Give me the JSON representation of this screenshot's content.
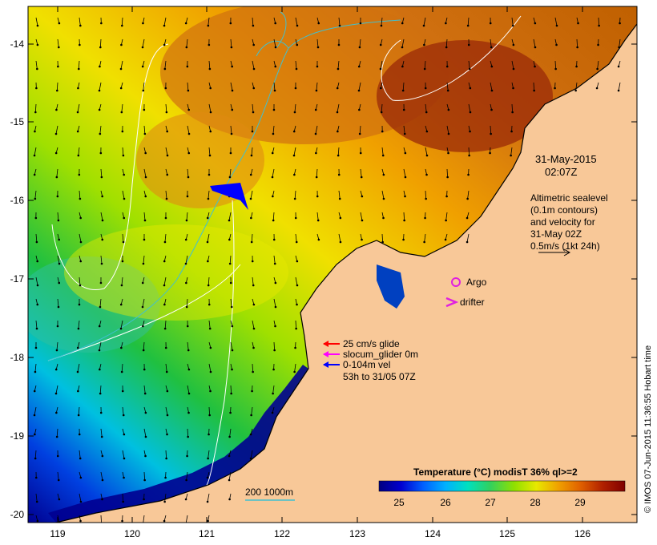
{
  "map": {
    "date_line1": "31-May-2015",
    "date_line2": "02:07Z",
    "altimetry_lines": [
      "Altimetric sealevel",
      "(0.1m contours)",
      "and velocity for",
      "31-May 02Z",
      "0.5m/s (1kt 24h)"
    ],
    "argo_label": "Argo",
    "drifter_label": "drifter",
    "legend_glide": "25 cm/s glide",
    "legend_slocum": "slocum_glider 0m",
    "legend_vel_line1": "0-104m vel",
    "legend_vel_line2": "53h to 31/05 07Z",
    "bathy_label": "200  1000m",
    "credit": "© IMOS 07-Jun-2015 11:36:55 Hobart time",
    "lat_ticks": [
      "-14",
      "-15",
      "-16",
      "-17",
      "-18",
      "-19",
      "-20"
    ],
    "lon_ticks": [
      "119",
      "120",
      "121",
      "122",
      "123",
      "124",
      "125",
      "126"
    ],
    "colorbar": {
      "title": "Temperature (°C) modisT 36% ql>=2",
      "ticks": [
        "25",
        "26",
        "27",
        "28",
        "29"
      ],
      "colors": [
        "#000080",
        "#0000d0",
        "#0060ff",
        "#00b0ff",
        "#00e0c0",
        "#30d060",
        "#90e000",
        "#e8e800",
        "#f0a000",
        "#e06000",
        "#b02000",
        "#800000"
      ]
    },
    "colors": {
      "land": "#f8c898",
      "argo": "#e020e0",
      "drifter": "#e020e0",
      "glide_arrow": "#ff0000",
      "slocum_arrow": "#ff00ff",
      "vel_arrow": "#0000ff",
      "bathy_line": "#40c0d0"
    }
  }
}
